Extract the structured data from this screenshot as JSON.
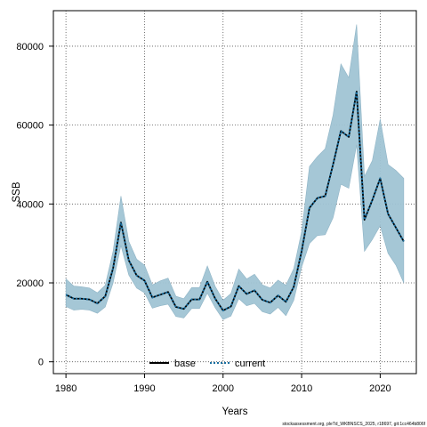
{
  "chart_data": {
    "type": "line",
    "title": "",
    "xlabel": "Years",
    "ylabel": "SSB",
    "xlim": [
      1978.4,
      2024.6
    ],
    "ylim": [
      -3000,
      89000
    ],
    "x_ticks": [
      1980,
      1990,
      2000,
      2010,
      2020
    ],
    "y_ticks": [
      0,
      20000,
      40000,
      60000,
      80000
    ],
    "x_tick_labels": [
      "1980",
      "1990",
      "2000",
      "2010",
      "2020"
    ],
    "y_tick_labels": [
      "0",
      "20000",
      "40000",
      "60000",
      "80000"
    ],
    "grid": true,
    "legend_position": "bottom",
    "x": [
      1980,
      1981,
      1982,
      1983,
      1984,
      1985,
      1986,
      1987,
      1988,
      1989,
      1990,
      1991,
      1992,
      1993,
      1994,
      1995,
      1996,
      1997,
      1998,
      1999,
      2000,
      2001,
      2002,
      2003,
      2004,
      2005,
      2006,
      2007,
      2008,
      2009,
      2010,
      2011,
      2012,
      2013,
      2014,
      2015,
      2016,
      2017,
      2018,
      2019,
      2020,
      2021,
      2022,
      2023
    ],
    "band": {
      "color": "#a0c4d4",
      "upper": [
        21000,
        19200,
        19000,
        18700,
        17500,
        19400,
        28000,
        42000,
        30500,
        26000,
        24500,
        19500,
        20500,
        21200,
        16600,
        16000,
        18800,
        18800,
        24300,
        19100,
        15600,
        17300,
        23500,
        21000,
        22200,
        19500,
        18700,
        20700,
        19400,
        23600,
        33000,
        49500,
        52000,
        54000,
        62500,
        75500,
        72000,
        85500,
        47000,
        51000,
        61500,
        50000,
        48500,
        46500
      ],
      "lower": [
        14000,
        13100,
        13300,
        13100,
        12300,
        13900,
        20000,
        29500,
        22000,
        18700,
        17500,
        13600,
        14200,
        14600,
        11500,
        11100,
        13500,
        13500,
        17400,
        13700,
        10700,
        11600,
        16000,
        14200,
        14800,
        12700,
        12100,
        13800,
        11700,
        15600,
        24000,
        30000,
        32000,
        32200,
        36500,
        45000,
        44000,
        55000,
        28000,
        31000,
        34500,
        27500,
        24500,
        20000
      ]
    },
    "series": [
      {
        "name": "base",
        "color": "#000000",
        "style": "solid",
        "values": [
          17000,
          16000,
          16000,
          15800,
          14800,
          16600,
          23700,
          35300,
          25700,
          21900,
          20600,
          16300,
          17000,
          17700,
          13900,
          13400,
          15800,
          15800,
          20300,
          16000,
          13000,
          14000,
          19200,
          17200,
          18100,
          15700,
          15000,
          16800,
          15200,
          19000,
          28000,
          39000,
          41500,
          42000,
          50000,
          58500,
          57000,
          68500,
          36000,
          41000,
          46500,
          37500,
          34000,
          30500
        ]
      },
      {
        "name": "current",
        "color": "#1a6fa0",
        "style": "dotted",
        "values": [
          17000,
          16000,
          16000,
          15800,
          14800,
          16600,
          23700,
          35300,
          25700,
          21900,
          20600,
          16300,
          17000,
          17700,
          13900,
          13400,
          15800,
          15800,
          20300,
          16000,
          13000,
          14000,
          19200,
          17200,
          18100,
          15700,
          15000,
          16800,
          15200,
          19000,
          28000,
          39000,
          41500,
          42000,
          50000,
          58500,
          57000,
          68500,
          36000,
          41000,
          46500,
          37500,
          34000,
          30500
        ]
      }
    ]
  },
  "caption": "stockassessment.org, pleTd_WKBNSCS_2025, r18697, git:1cc464b806f"
}
